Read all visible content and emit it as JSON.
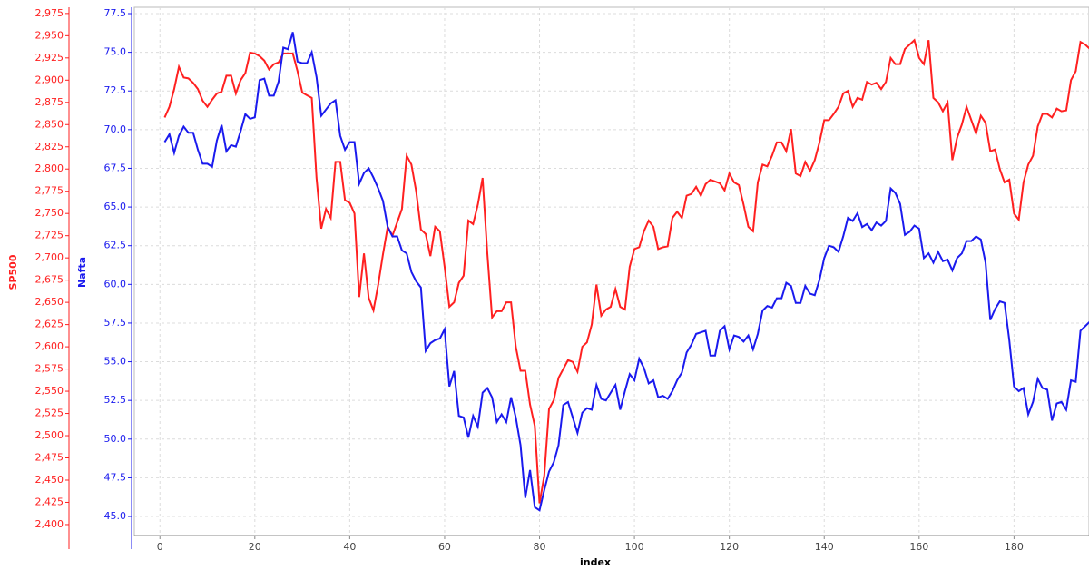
{
  "chart_data": {
    "type": "line",
    "x_label": "index",
    "y_label": "SP500",
    "y2_label": "Nafta",
    "x": [
      1,
      2,
      3,
      4,
      5,
      6,
      7,
      8,
      9,
      10,
      11,
      12,
      13,
      14,
      15,
      16,
      17,
      18,
      19,
      20,
      21,
      22,
      23,
      24,
      25,
      26,
      27,
      28,
      29,
      30,
      31,
      32,
      33,
      34,
      35,
      36,
      37,
      38,
      39,
      40,
      41,
      42,
      43,
      44,
      45,
      46,
      47,
      48,
      49,
      50,
      51,
      52,
      53,
      54,
      55,
      56,
      57,
      58,
      59,
      60,
      61,
      62,
      63,
      64,
      65,
      66,
      67,
      68,
      69,
      70,
      71,
      72,
      73,
      74,
      75,
      76,
      77,
      78,
      79,
      80,
      81,
      82,
      83,
      84,
      85,
      86,
      87,
      88,
      89,
      90,
      91,
      92,
      93,
      94,
      95,
      96,
      97,
      98,
      99,
      100,
      101,
      102,
      103,
      104,
      105,
      106,
      107,
      108,
      109,
      110,
      111,
      112,
      113,
      114,
      115,
      116,
      117,
      118,
      119,
      120,
      121,
      122,
      123,
      124,
      125,
      126,
      127,
      128,
      129,
      130,
      131,
      132,
      133,
      134,
      135,
      136,
      137,
      138,
      139,
      140,
      141,
      142,
      143,
      144,
      145,
      146,
      147,
      148,
      149,
      150,
      151,
      152,
      153,
      154,
      155,
      156,
      157,
      158,
      159,
      160,
      161,
      162,
      163,
      164,
      165,
      166,
      167,
      168,
      169,
      170,
      171,
      172,
      173,
      174,
      175,
      176,
      177,
      178,
      179,
      180,
      181,
      182,
      183,
      184,
      185,
      186,
      187,
      188,
      189,
      190,
      191,
      192,
      193,
      194,
      195,
      196
    ],
    "series": [
      {
        "name": "SP500",
        "color": "#ff2020",
        "axis": "y",
        "values": [
          2858,
          2870,
          2890,
          2915,
          2903,
          2902,
          2897,
          2890,
          2877,
          2870,
          2878,
          2885,
          2887,
          2905,
          2905,
          2885,
          2900,
          2908,
          2931,
          2930,
          2927,
          2922,
          2912,
          2918,
          2920,
          2930,
          2930,
          2930,
          2910,
          2886,
          2883,
          2880,
          2790,
          2733,
          2755,
          2745,
          2808,
          2808,
          2765,
          2762,
          2750,
          2656,
          2705,
          2655,
          2641,
          2670,
          2704,
          2735,
          2725,
          2740,
          2755,
          2815,
          2805,
          2775,
          2732,
          2727,
          2702,
          2735,
          2730,
          2690,
          2645,
          2650,
          2672,
          2680,
          2742,
          2738,
          2760,
          2790,
          2705,
          2633,
          2640,
          2640,
          2650,
          2650,
          2600,
          2573,
          2573,
          2535,
          2511,
          2424,
          2455,
          2530,
          2540,
          2565,
          2575,
          2585,
          2583,
          2572,
          2600,
          2605,
          2625,
          2670,
          2635,
          2642,
          2645,
          2665,
          2645,
          2642,
          2690,
          2710,
          2712,
          2730,
          2742,
          2735,
          2710,
          2712,
          2713,
          2745,
          2752,
          2745,
          2770,
          2772,
          2780,
          2770,
          2783,
          2788,
          2786,
          2784,
          2776,
          2795,
          2785,
          2782,
          2760,
          2735,
          2730,
          2785,
          2805,
          2803,
          2815,
          2830,
          2830,
          2820,
          2845,
          2795,
          2792,
          2808,
          2798,
          2810,
          2830,
          2855,
          2855,
          2862,
          2870,
          2885,
          2888,
          2870,
          2880,
          2878,
          2898,
          2895,
          2897,
          2890,
          2898,
          2925,
          2918,
          2918,
          2935,
          2940,
          2945,
          2925,
          2918,
          2945,
          2880,
          2875,
          2865,
          2875,
          2810,
          2835,
          2850,
          2870,
          2855,
          2840,
          2860,
          2852,
          2820,
          2822,
          2800,
          2785,
          2788,
          2750,
          2743,
          2785,
          2805,
          2815,
          2848,
          2862,
          2862,
          2858,
          2868,
          2865,
          2866,
          2900,
          2910,
          2943,
          2940,
          2935
        ]
      },
      {
        "name": "Nafta",
        "color": "#1a1aee",
        "axis": "y2",
        "values": [
          69.2,
          69.7,
          68.5,
          69.6,
          70.2,
          69.8,
          69.8,
          68.7,
          67.8,
          67.8,
          67.6,
          69.3,
          70.3,
          68.6,
          69.0,
          68.9,
          69.9,
          71.0,
          70.7,
          70.8,
          73.2,
          73.3,
          72.2,
          72.2,
          73.1,
          75.3,
          75.2,
          76.3,
          74.4,
          74.3,
          74.3,
          75.0,
          73.4,
          70.9,
          71.3,
          71.7,
          71.9,
          69.6,
          68.7,
          69.2,
          69.2,
          66.5,
          67.2,
          67.5,
          66.9,
          66.2,
          65.4,
          63.7,
          63.1,
          63.1,
          62.2,
          62.0,
          60.8,
          60.2,
          59.8,
          55.7,
          56.2,
          56.4,
          56.5,
          57.1,
          53.4,
          54.4,
          51.5,
          51.4,
          50.1,
          51.5,
          50.8,
          53.0,
          53.3,
          52.7,
          51.1,
          51.6,
          51.1,
          52.7,
          51.4,
          49.6,
          46.2,
          48.0,
          45.6,
          45.4,
          46.7,
          47.9,
          48.5,
          49.6,
          52.2,
          52.4,
          51.4,
          50.4,
          51.7,
          52.0,
          51.9,
          53.5,
          52.6,
          52.5,
          53.0,
          53.5,
          51.9,
          53.1,
          54.2,
          53.8,
          55.2,
          54.6,
          53.6,
          53.8,
          52.7,
          52.8,
          52.6,
          53.1,
          53.8,
          54.3,
          55.6,
          56.1,
          56.8,
          56.9,
          57.0,
          55.4,
          55.4,
          57.0,
          57.3,
          55.8,
          56.7,
          56.6,
          56.3,
          56.7,
          55.8,
          56.8,
          58.3,
          58.6,
          58.5,
          59.1,
          59.1,
          60.1,
          59.9,
          58.8,
          58.8,
          59.9,
          59.4,
          59.3,
          60.3,
          61.7,
          62.5,
          62.4,
          62.1,
          63.1,
          64.3,
          64.1,
          64.6,
          63.7,
          63.9,
          63.5,
          64.0,
          63.8,
          64.1,
          66.2,
          65.9,
          65.2,
          63.2,
          63.4,
          63.8,
          63.6,
          61.7,
          62.0,
          61.4,
          62.1,
          61.5,
          61.6,
          60.9,
          61.7,
          62.0,
          62.8,
          62.8,
          63.1,
          62.9,
          61.4,
          57.7,
          58.4,
          58.9,
          58.8,
          56.4,
          53.4,
          53.1,
          53.3,
          51.6,
          52.4,
          53.9,
          53.3,
          53.2,
          51.2,
          52.3,
          52.4,
          51.9,
          53.8,
          53.7,
          57.0,
          57.3,
          57.6
        ]
      }
    ],
    "xlim": [
      -5.4,
      195.8
    ],
    "xticks": [
      0,
      20,
      40,
      60,
      80,
      100,
      120,
      140,
      160,
      180
    ],
    "ylim": [
      2387.7,
      2982
    ],
    "yticks": [
      {
        "value": 2400,
        "label": "2,400"
      },
      {
        "value": 2425,
        "label": "2,425"
      },
      {
        "value": 2450,
        "label": "2,450"
      },
      {
        "value": 2475,
        "label": "2,475"
      },
      {
        "value": 2500,
        "label": "2,500"
      },
      {
        "value": 2525,
        "label": "2,525"
      },
      {
        "value": 2550,
        "label": "2,550"
      },
      {
        "value": 2575,
        "label": "2,575"
      },
      {
        "value": 2600,
        "label": "2,600"
      },
      {
        "value": 2625,
        "label": "2,625"
      },
      {
        "value": 2650,
        "label": "2,650"
      },
      {
        "value": 2675,
        "label": "2,675"
      },
      {
        "value": 2700,
        "label": "2,700"
      },
      {
        "value": 2725,
        "label": "2,725"
      },
      {
        "value": 2750,
        "label": "2,750"
      },
      {
        "value": 2775,
        "label": "2,775"
      },
      {
        "value": 2800,
        "label": "2,800"
      },
      {
        "value": 2825,
        "label": "2,825"
      },
      {
        "value": 2850,
        "label": "2,850"
      },
      {
        "value": 2875,
        "label": "2,875"
      },
      {
        "value": 2900,
        "label": "2,900"
      },
      {
        "value": 2925,
        "label": "2,925"
      },
      {
        "value": 2950,
        "label": "2,950"
      },
      {
        "value": 2975,
        "label": "2,975"
      }
    ],
    "y2lim": [
      43.77,
      77.91
    ],
    "y2ticks": [
      {
        "value": 45,
        "label": "45.0"
      },
      47.5,
      {
        "value": 50,
        "label": "50.0"
      },
      52.5,
      {
        "value": 55,
        "label": "55.0"
      },
      57.5,
      {
        "value": 60,
        "label": "60.0"
      },
      62.5,
      {
        "value": 65,
        "label": "65.0"
      },
      67.5,
      {
        "value": 70,
        "label": "70.0"
      },
      72.5,
      {
        "value": 75,
        "label": "75.0"
      },
      77.5
    ],
    "grid": true
  }
}
